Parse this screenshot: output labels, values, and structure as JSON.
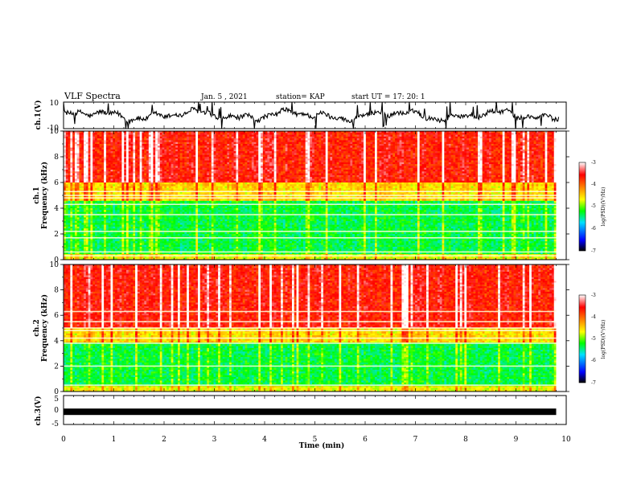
{
  "header": {
    "title": "VLF Spectra",
    "date": "Jan. 5 , 2021",
    "station": "station= KAP",
    "start_time": "start UT = 17: 20: 1"
  },
  "chart_data": [
    {
      "type": "line",
      "name": "ch1-waveform",
      "ylabel": "ch.1(V)",
      "ylim": [
        -10,
        10
      ],
      "yticks": [
        "10",
        "-10"
      ],
      "xlim": [
        0,
        10
      ]
    },
    {
      "type": "heatmap",
      "name": "ch1-spectrogram",
      "ylabel_lines": [
        "ch.1",
        "Frequency (kHz)"
      ],
      "ylim": [
        0,
        10
      ],
      "yticks": [
        "0",
        "2",
        "4",
        "6",
        "8",
        "10"
      ],
      "xlim": [
        0,
        9.8
      ],
      "colorbar": {
        "label": "log(PSD)(V²/Hz)",
        "range": [
          -7,
          -3
        ],
        "ticks": [
          "-3",
          "-4",
          "-5",
          "-6",
          "-7"
        ],
        "colors": [
          "#000000",
          "#0000ff",
          "#00e0ff",
          "#00ff00",
          "#ffff00",
          "#ff8000",
          "#ff0000",
          "#ffffff"
        ]
      }
    },
    {
      "type": "heatmap",
      "name": "ch2-spectrogram",
      "ylabel_lines": [
        "ch.2",
        "Frequency (kHz)"
      ],
      "ylim": [
        0,
        10
      ],
      "yticks": [
        "0",
        "2",
        "4",
        "6",
        "8",
        "10"
      ],
      "xlim": [
        0,
        9.8
      ],
      "colorbar": {
        "label": "log(PSD)(V²/Hz)",
        "range": [
          -7,
          -3
        ],
        "ticks": [
          "-3",
          "-4",
          "-5",
          "-6",
          "-7"
        ],
        "colors": [
          "#000000",
          "#0000ff",
          "#00e0ff",
          "#00ff00",
          "#ffff00",
          "#ff8000",
          "#ff0000",
          "#ffffff"
        ]
      }
    },
    {
      "type": "line",
      "name": "ch3-waveform",
      "ylabel": "ch.3(V)",
      "ylim": [
        -5,
        5
      ],
      "yticks": [
        "5",
        "0",
        "-5"
      ],
      "xlim": [
        0,
        10
      ],
      "level": -0.6
    }
  ],
  "xaxis": {
    "label": "Time (min)",
    "range": [
      0,
      10
    ],
    "ticks": [
      "0",
      "1",
      "2",
      "3",
      "4",
      "5",
      "6",
      "7",
      "8",
      "9",
      "10"
    ]
  }
}
